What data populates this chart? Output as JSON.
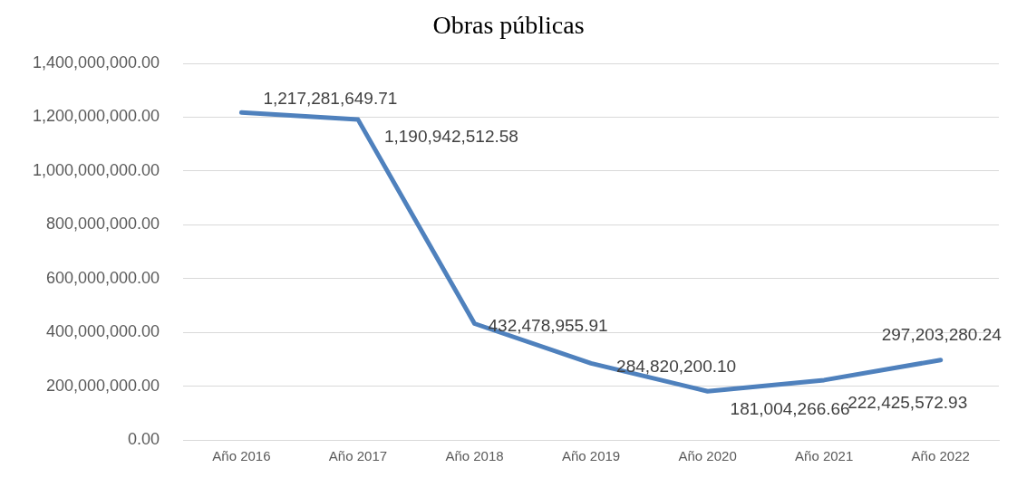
{
  "chart_data": {
    "type": "line",
    "title": "Obras públicas",
    "categories": [
      "Año 2016",
      "Año 2017",
      "Año 2018",
      "Año 2019",
      "Año 2020",
      "Año 2021",
      "Año 2022"
    ],
    "series": [
      {
        "color": "#4f81bd",
        "values": [
          1217281649.71,
          1190942512.58,
          432478955.91,
          284820200.1,
          181004266.66,
          222425572.93,
          297203280.24
        ],
        "value_labels": [
          "1,217,281,649.71",
          "1,190,942,512.58",
          "432,478,955.91",
          "284,820,200.10",
          "181,004,266.66",
          "222,425,572.93",
          "297,203,280.24"
        ]
      }
    ],
    "ylim": [
      0,
      1400000000
    ],
    "yticks": [
      {
        "value": 0,
        "label": "0.00"
      },
      {
        "value": 200000000,
        "label": "200,000,000.00"
      },
      {
        "value": 400000000,
        "label": "400,000,000.00"
      },
      {
        "value": 600000000,
        "label": "600,000,000.00"
      },
      {
        "value": 800000000,
        "label": "800,000,000.00"
      },
      {
        "value": 1000000000,
        "label": "1,000,000,000.00"
      },
      {
        "value": 1200000000,
        "label": "1,200,000,000.00"
      },
      {
        "value": 1400000000,
        "label": "1,400,000,000.00"
      }
    ],
    "grid": "y",
    "legend": false,
    "marker": "none",
    "line_style": "solid"
  }
}
